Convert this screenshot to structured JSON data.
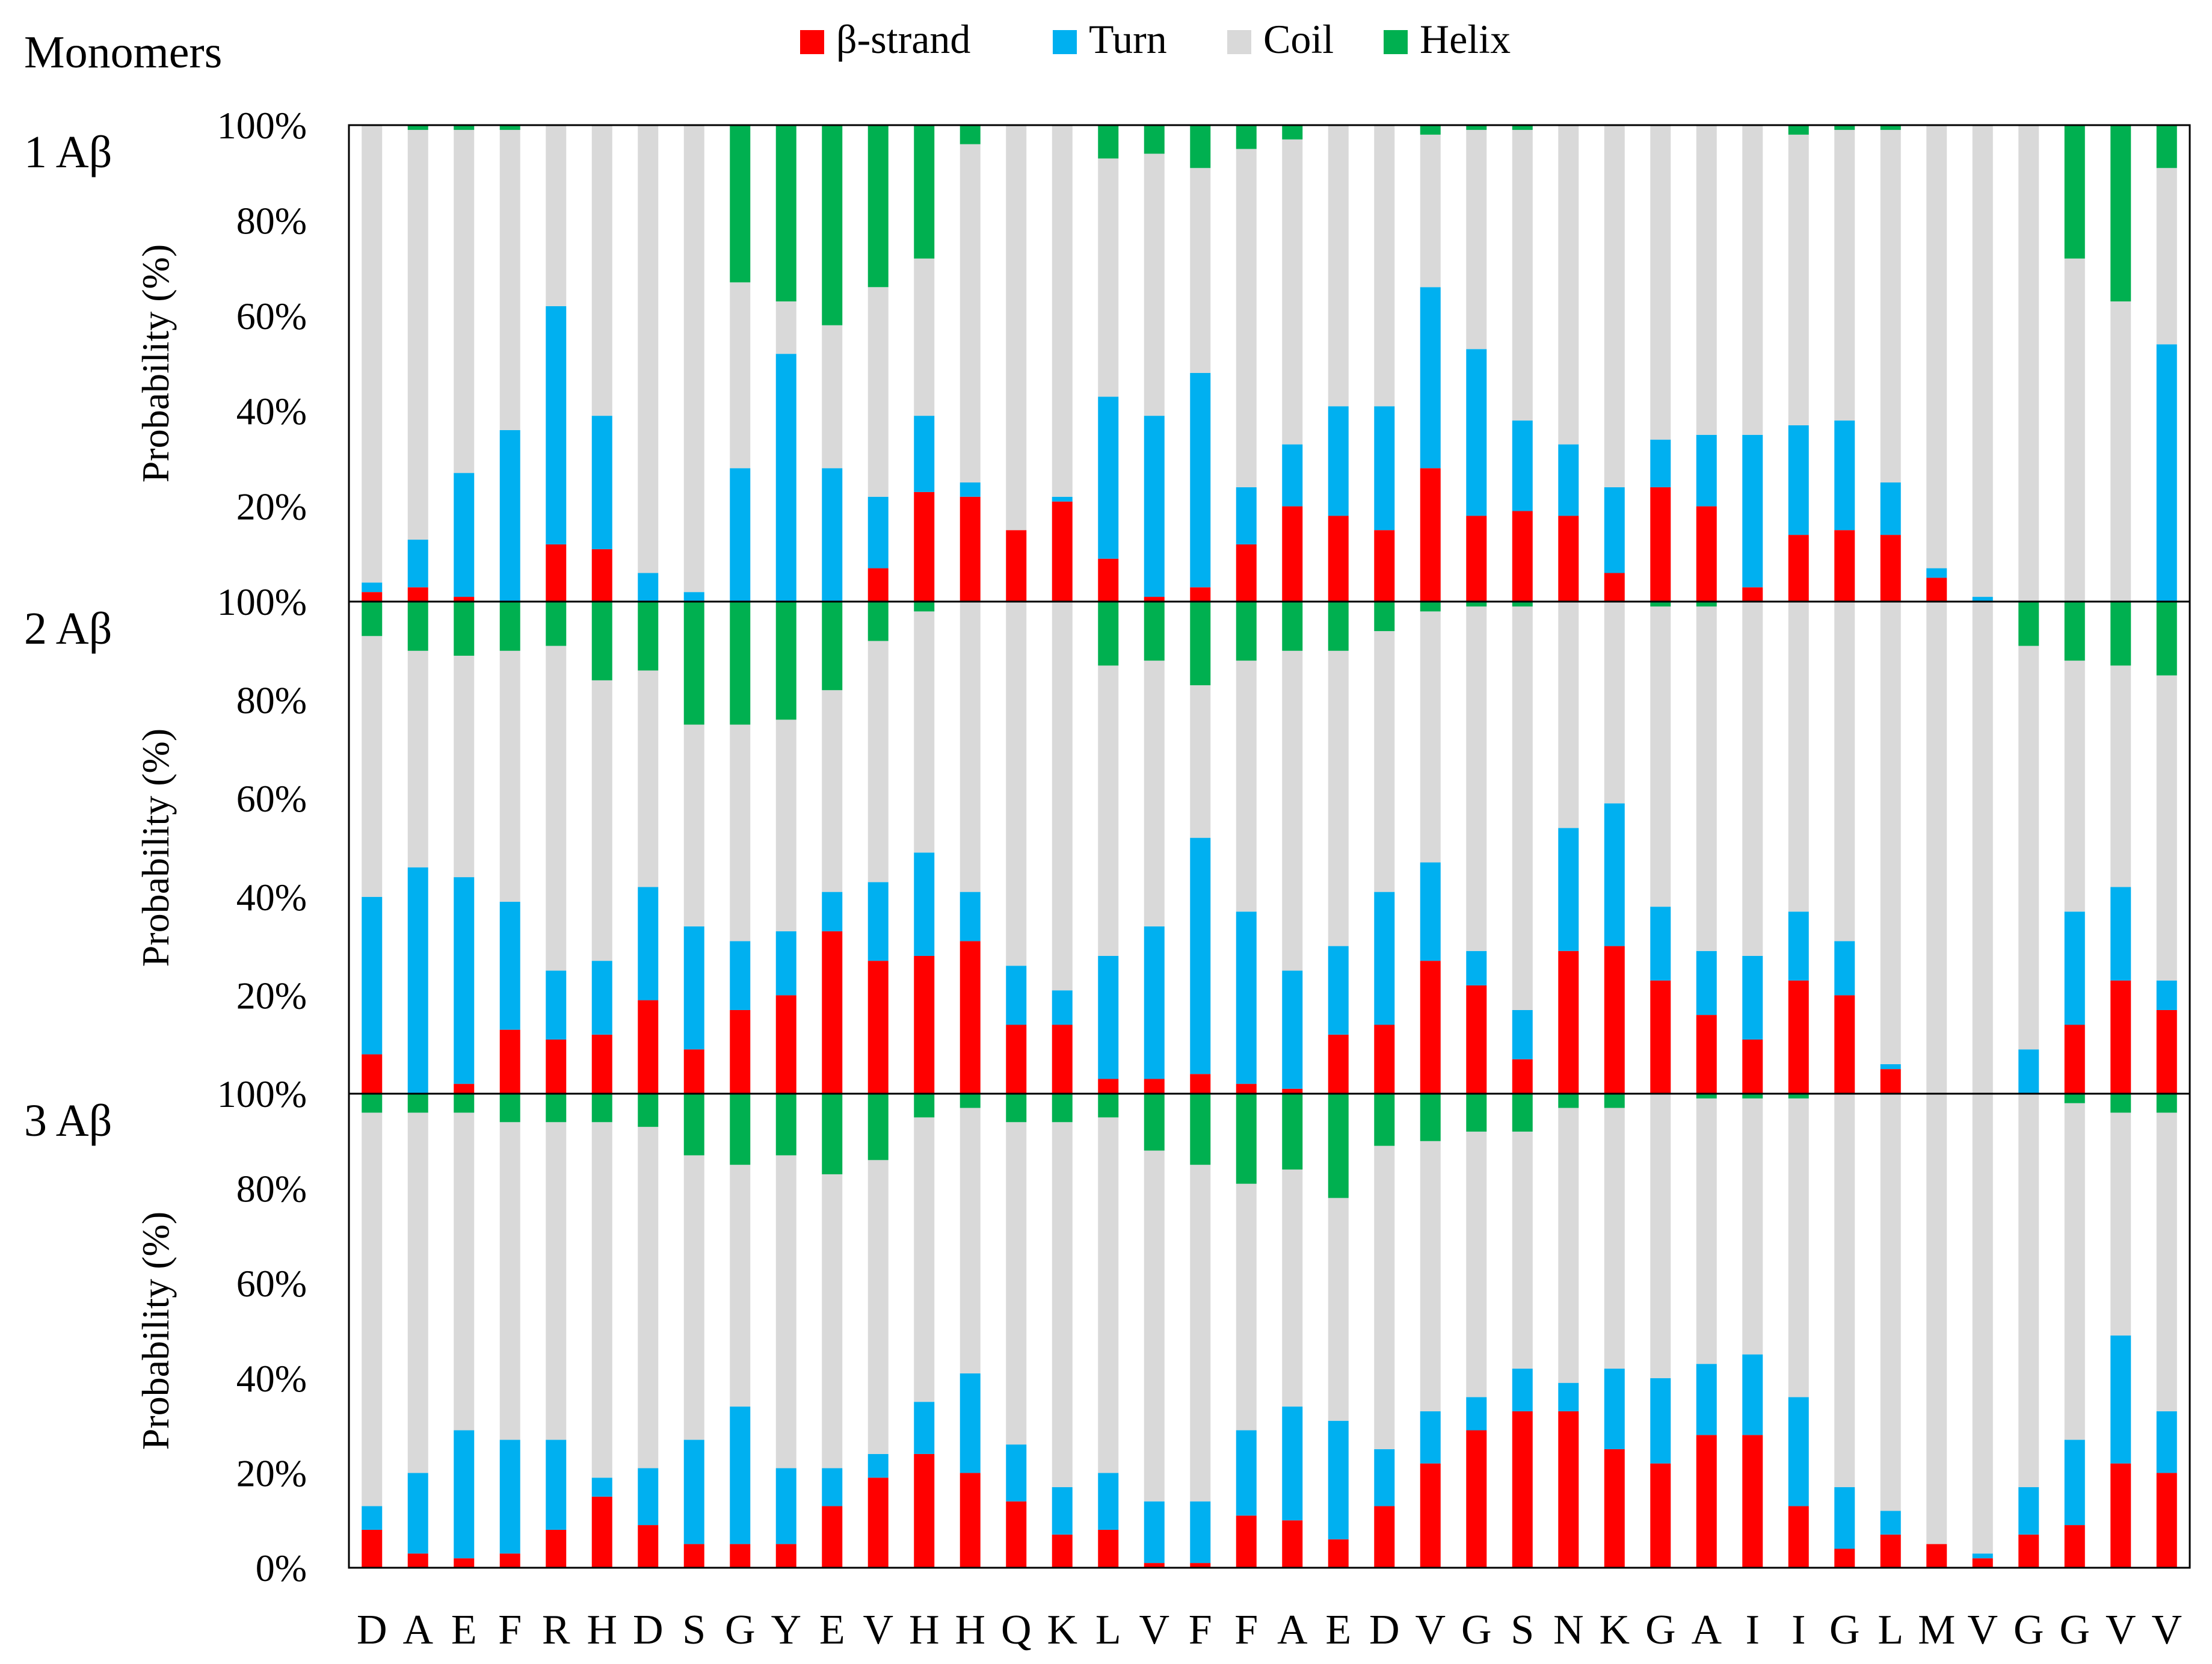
{
  "header": {
    "title": "Monomers"
  },
  "legend": [
    {
      "label": "β-strand",
      "color": "#ff0000",
      "key": "beta"
    },
    {
      "label": "Turn",
      "color": "#00b0f0",
      "key": "turn"
    },
    {
      "label": "Coil",
      "color": "#d9d9d9",
      "key": "coil"
    },
    {
      "label": "Helix",
      "color": "#00b050",
      "key": "helix"
    }
  ],
  "chart_data": {
    "type": "bar",
    "stacked": true,
    "stack_order": [
      "beta",
      "turn",
      "coil",
      "helix"
    ],
    "legend_position": "top",
    "grid": false,
    "ylabel": "Probability (%)",
    "ylim": [
      0,
      100
    ],
    "yticks": [
      "0%",
      "20%",
      "40%",
      "60%",
      "80%",
      "100%"
    ],
    "categories": [
      "D",
      "A",
      "E",
      "F",
      "R",
      "H",
      "D",
      "S",
      "G",
      "Y",
      "E",
      "V",
      "H",
      "H",
      "Q",
      "K",
      "L",
      "V",
      "F",
      "F",
      "A",
      "E",
      "D",
      "V",
      "G",
      "S",
      "N",
      "K",
      "G",
      "A",
      "I",
      "I",
      "G",
      "L",
      "M",
      "V",
      "G",
      "G",
      "V",
      "V"
    ],
    "panels": [
      {
        "label": "1 Aβ",
        "series": [
          {
            "name": "β-strand",
            "values": [
              2,
              3,
              1,
              0,
              12,
              11,
              0,
              0,
              0,
              0,
              0,
              7,
              23,
              22,
              15,
              21,
              9,
              1,
              3,
              12,
              20,
              18,
              15,
              28,
              18,
              19,
              18,
              6,
              24,
              20,
              3,
              14,
              15,
              14,
              5,
              0,
              0,
              0,
              0,
              0
            ]
          },
          {
            "name": "Turn",
            "values": [
              2,
              10,
              26,
              36,
              50,
              28,
              6,
              2,
              28,
              52,
              28,
              15,
              16,
              3,
              0,
              1,
              34,
              38,
              45,
              12,
              13,
              23,
              26,
              38,
              35,
              19,
              15,
              18,
              10,
              15,
              32,
              23,
              23,
              11,
              2,
              1,
              0,
              0,
              0,
              54
            ]
          },
          {
            "name": "Coil",
            "values": [
              96,
              86,
              72,
              63,
              38,
              61,
              94,
              98,
              39,
              11,
              30,
              44,
              33,
              71,
              85,
              78,
              50,
              55,
              43,
              71,
              64,
              59,
              59,
              32,
              46,
              61,
              67,
              76,
              66,
              65,
              65,
              61,
              61,
              74,
              93,
              99,
              100,
              72,
              63,
              37
            ]
          },
          {
            "name": "Helix",
            "values": [
              0,
              1,
              1,
              1,
              0,
              0,
              0,
              0,
              33,
              37,
              42,
              34,
              28,
              4,
              0,
              0,
              7,
              6,
              9,
              5,
              3,
              0,
              0,
              2,
              1,
              1,
              0,
              0,
              0,
              0,
              0,
              2,
              1,
              1,
              0,
              0,
              0,
              28,
              37,
              9
            ]
          }
        ]
      },
      {
        "label": "2 Aβ",
        "series": [
          {
            "name": "β-strand",
            "values": [
              8,
              0,
              2,
              13,
              11,
              12,
              19,
              9,
              17,
              20,
              33,
              27,
              28,
              31,
              14,
              14,
              3,
              3,
              4,
              2,
              1,
              12,
              14,
              27,
              22,
              7,
              29,
              30,
              23,
              16,
              11,
              23,
              20,
              5,
              0,
              0,
              0,
              14,
              23,
              17
            ]
          },
          {
            "name": "Turn",
            "values": [
              32,
              46,
              42,
              26,
              14,
              15,
              23,
              25,
              14,
              13,
              8,
              16,
              21,
              10,
              12,
              7,
              25,
              31,
              48,
              35,
              24,
              18,
              27,
              20,
              7,
              10,
              25,
              29,
              15,
              13,
              17,
              14,
              11,
              1,
              0,
              0,
              9,
              23,
              19,
              6
            ]
          },
          {
            "name": "Coil",
            "values": [
              53,
              44,
              45,
              51,
              66,
              57,
              44,
              41,
              44,
              43,
              41,
              49,
              49,
              59,
              74,
              79,
              59,
              54,
              31,
              51,
              65,
              60,
              53,
              51,
              70,
              82,
              46,
              41,
              61,
              70,
              72,
              63,
              69,
              94,
              100,
              100,
              82,
              51,
              45,
              62
            ]
          },
          {
            "name": "Helix",
            "values": [
              7,
              10,
              11,
              10,
              9,
              16,
              14,
              25,
              25,
              24,
              18,
              8,
              2,
              0,
              0,
              0,
              13,
              12,
              17,
              12,
              10,
              10,
              6,
              2,
              1,
              1,
              0,
              0,
              1,
              1,
              0,
              0,
              0,
              0,
              0,
              0,
              9,
              12,
              13,
              15
            ]
          }
        ]
      },
      {
        "label": "3 Aβ",
        "series": [
          {
            "name": "β-strand",
            "values": [
              8,
              3,
              2,
              3,
              8,
              15,
              9,
              5,
              5,
              5,
              13,
              19,
              24,
              20,
              14,
              7,
              8,
              1,
              1,
              11,
              10,
              6,
              13,
              22,
              29,
              33,
              33,
              25,
              22,
              28,
              28,
              13,
              4,
              7,
              5,
              2,
              7,
              9,
              22,
              20
            ]
          },
          {
            "name": "Turn",
            "values": [
              5,
              17,
              27,
              24,
              19,
              4,
              12,
              22,
              29,
              16,
              8,
              5,
              11,
              21,
              12,
              10,
              12,
              13,
              13,
              18,
              24,
              25,
              12,
              11,
              7,
              9,
              6,
              17,
              18,
              15,
              17,
              23,
              13,
              5,
              0,
              1,
              10,
              18,
              27,
              13
            ]
          },
          {
            "name": "Coil",
            "values": [
              83,
              76,
              67,
              67,
              67,
              75,
              72,
              60,
              51,
              66,
              62,
              62,
              60,
              56,
              68,
              77,
              75,
              74,
              71,
              52,
              50,
              47,
              64,
              57,
              56,
              50,
              58,
              55,
              60,
              56,
              54,
              63,
              83,
              88,
              95,
              97,
              83,
              71,
              47,
              63
            ]
          },
          {
            "name": "Helix",
            "values": [
              4,
              4,
              4,
              6,
              6,
              6,
              7,
              13,
              15,
              13,
              17,
              14,
              5,
              3,
              6,
              6,
              5,
              12,
              15,
              19,
              16,
              22,
              11,
              10,
              8,
              8,
              3,
              3,
              0,
              1,
              1,
              1,
              0,
              0,
              0,
              0,
              0,
              2,
              4,
              4
            ]
          }
        ]
      }
    ]
  }
}
